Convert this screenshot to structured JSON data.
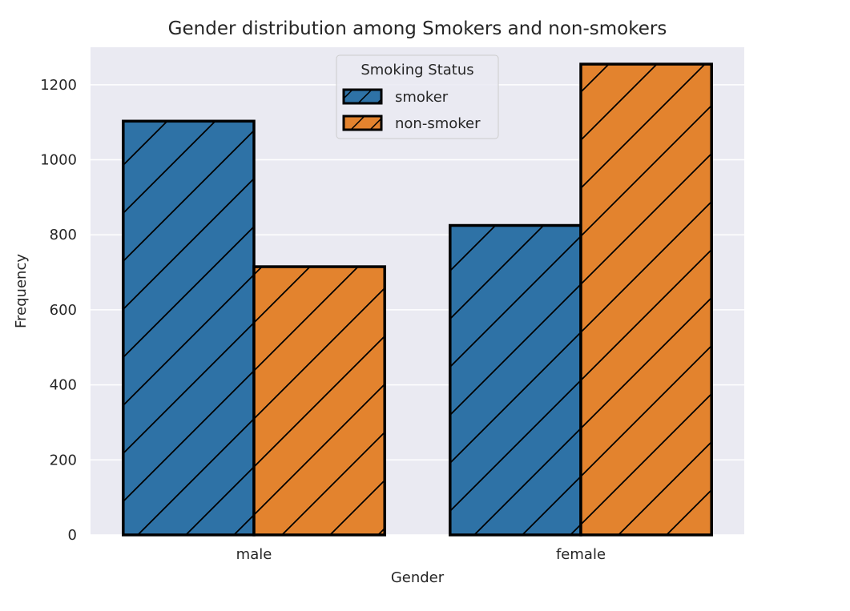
{
  "chart_data": {
    "type": "bar",
    "title": "Gender distribution among Smokers and non-smokers",
    "xlabel": "Gender",
    "ylabel": "Frequency",
    "categories": [
      "male",
      "female"
    ],
    "series": [
      {
        "name": "smoker",
        "values": [
          1103,
          825
        ],
        "color": "#2e72a6"
      },
      {
        "name": "non-smoker",
        "values": [
          715,
          1255
        ],
        "color": "#e3832e"
      }
    ],
    "ylim": [
      0,
      1300
    ],
    "yticks": [
      0,
      200,
      400,
      600,
      800,
      1000,
      1200
    ],
    "grid": true,
    "legend": {
      "title": "Smoking Status",
      "placement": "upper-center"
    },
    "hatch": "diagonal",
    "background": "#eaeaf2"
  }
}
